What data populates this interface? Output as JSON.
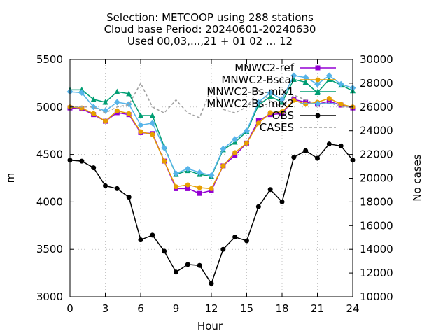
{
  "chart_data": {
    "type": "line",
    "title_lines": [
      "Selection: METCOOP using   288 stations",
      "Cloud base   Period: 20240601-20240630",
      "Used 00,03,...,21 + 01 02 ... 12"
    ],
    "xlabel": "Hour",
    "ylabel": "m",
    "y2label": "No cases",
    "xlim": [
      0,
      24
    ],
    "ylim": [
      3000,
      5500
    ],
    "y2lim": [
      10000,
      30000
    ],
    "xticks": [
      0,
      3,
      6,
      9,
      12,
      15,
      18,
      21,
      24
    ],
    "yticks": [
      3000,
      3500,
      4000,
      4500,
      5000,
      5500
    ],
    "y2ticks": [
      10000,
      12000,
      14000,
      16000,
      18000,
      20000,
      22000,
      24000,
      26000,
      28000,
      30000
    ],
    "grid": true,
    "legend_position": "top-right",
    "x": [
      0,
      1,
      2,
      3,
      4,
      5,
      6,
      7,
      8,
      9,
      10,
      11,
      12,
      13,
      14,
      15,
      16,
      17,
      18,
      19,
      20,
      21,
      22,
      23,
      24
    ],
    "series": [
      {
        "name": "MNWC2-ref",
        "color": "#9400d3",
        "marker": "square",
        "axis": "y1",
        "values": [
          4990,
          4980,
          4920,
          4850,
          4940,
          4920,
          4730,
          4720,
          4430,
          4140,
          4140,
          4090,
          4120,
          4380,
          4490,
          4620,
          4860,
          4920,
          4930,
          5080,
          5050,
          5030,
          5060,
          5020,
          4990
        ]
      },
      {
        "name": "MNWC2-Bscal",
        "color": "#e69f00",
        "marker": "circle",
        "axis": "y1",
        "values": [
          5000,
          4990,
          4930,
          4850,
          4960,
          4930,
          4740,
          4710,
          4430,
          4160,
          4180,
          4150,
          4140,
          4380,
          4520,
          4620,
          4830,
          4940,
          4950,
          5070,
          5030,
          5050,
          5090,
          5030,
          5000
        ]
      },
      {
        "name": "MNWC2-Bs-mix1",
        "color": "#009e73",
        "marker": "triangle",
        "axis": "y1",
        "values": [
          5180,
          5180,
          5080,
          5050,
          5160,
          5140,
          4910,
          4910,
          4580,
          4290,
          4330,
          4290,
          4270,
          4550,
          4630,
          4740,
          5020,
          5110,
          5050,
          5290,
          5260,
          5150,
          5290,
          5230,
          5170
        ]
      },
      {
        "name": "MNWC2-Bs-mix2",
        "color": "#56b4e9",
        "marker": "diamond",
        "axis": "y1",
        "values": [
          5160,
          5150,
          5000,
          4960,
          5050,
          5030,
          4810,
          4830,
          4570,
          4300,
          4350,
          4310,
          4280,
          4560,
          4660,
          4750,
          5050,
          5150,
          5080,
          5330,
          5310,
          5240,
          5330,
          5240,
          5200
        ]
      },
      {
        "name": "OBS",
        "color": "#000000",
        "marker": "circle",
        "axis": "y1",
        "values": [
          4440,
          4430,
          4360,
          4170,
          4140,
          4050,
          3600,
          3650,
          3480,
          3260,
          3340,
          3330,
          3140,
          3500,
          3630,
          3590,
          3950,
          4130,
          4000,
          4470,
          4540,
          4460,
          4610,
          4590,
          4440
        ]
      },
      {
        "name": "CASES",
        "color": "#a0a0a0",
        "marker": "none",
        "dashed": true,
        "axis": "y2",
        "values": [
          26000,
          26000,
          26000,
          25500,
          26000,
          26200,
          28000,
          26000,
          25500,
          26600,
          25500,
          25100,
          27600,
          25800,
          25500,
          26000,
          27400,
          26500,
          26000,
          27000,
          26600,
          26200,
          26400,
          26000,
          26000
        ]
      }
    ]
  }
}
